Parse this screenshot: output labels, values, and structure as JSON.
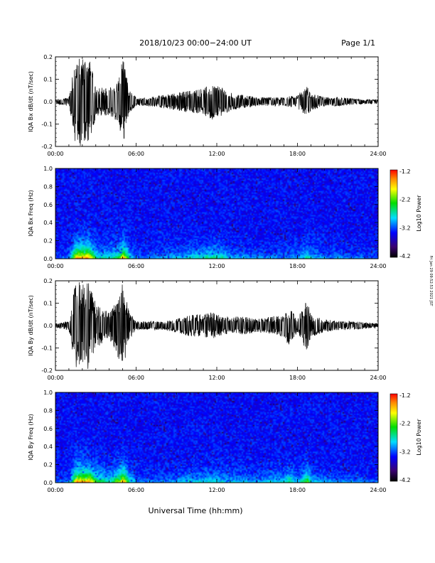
{
  "header": {
    "date_range": "2018/10/23  00:00−24:00 UT",
    "page": "Page 1/1"
  },
  "footer": {
    "xlabel": "Universal Time (hh:mm)",
    "side_note": "Fri Jan 29 09:52:53 2021 JST"
  },
  "time_ticks": [
    "00:00",
    "06:00",
    "12:00",
    "18:00",
    "24:00"
  ],
  "chart_data": [
    {
      "type": "line",
      "ylabel": "IQA Bx dB/dt (nT/sec)",
      "xlim": [
        0,
        24
      ],
      "ylim": [
        -0.2,
        0.2
      ],
      "yticks": [
        "0.2",
        "0.1",
        "0.0",
        "-0.1",
        "-0.2"
      ],
      "x": [
        0,
        1,
        1.5,
        2,
        2.5,
        3,
        4,
        4.7,
        5,
        5.5,
        6,
        7,
        8,
        9,
        10,
        11,
        11.7,
        12,
        12.5,
        13,
        14,
        15,
        16,
        17,
        18,
        18.7,
        19,
        20,
        21,
        22,
        23,
        24
      ],
      "y_envelope": [
        0.01,
        0.02,
        0.2,
        0.2,
        0.2,
        0.07,
        0.06,
        0.1,
        0.2,
        0.05,
        0.02,
        0.02,
        0.03,
        0.04,
        0.05,
        0.06,
        0.08,
        0.07,
        0.06,
        0.04,
        0.03,
        0.02,
        0.02,
        0.02,
        0.03,
        0.07,
        0.04,
        0.02,
        0.02,
        0.015,
        0.01,
        0.01
      ]
    },
    {
      "type": "heatmap",
      "ylabel": "IQA Bx Freq (Hz)",
      "colorbar_label": "Log10 Power",
      "colorbar_ticks": [
        "-1.2",
        "-2.2",
        "-3.2",
        "-4.2"
      ],
      "xlim": [
        0,
        24
      ],
      "ylim": [
        0.0,
        1.0
      ],
      "yticks": [
        "1.0",
        "0.8",
        "0.6",
        "0.4",
        "0.2",
        "0.0"
      ],
      "clim": [
        -4.2,
        -1.2
      ]
    },
    {
      "type": "line",
      "ylabel": "IQA By dB/dt (nT/sec)",
      "xlim": [
        0,
        24
      ],
      "ylim": [
        -0.2,
        0.2
      ],
      "yticks": [
        "0.2",
        "0.1",
        "0.0",
        "-0.1",
        "-0.2"
      ],
      "x": [
        0,
        1,
        1.5,
        2,
        2.5,
        3,
        4,
        4.7,
        5,
        5.5,
        6,
        7,
        8,
        9,
        10,
        11,
        11.7,
        12,
        12.5,
        13,
        14,
        15,
        16,
        17,
        17.3,
        18,
        18.7,
        19,
        20,
        21,
        22,
        23,
        24
      ],
      "y_envelope": [
        0.01,
        0.02,
        0.2,
        0.2,
        0.2,
        0.1,
        0.06,
        0.15,
        0.2,
        0.06,
        0.02,
        0.02,
        0.02,
        0.03,
        0.05,
        0.05,
        0.06,
        0.05,
        0.04,
        0.04,
        0.04,
        0.03,
        0.04,
        0.05,
        0.09,
        0.03,
        0.12,
        0.05,
        0.03,
        0.02,
        0.02,
        0.015,
        0.01
      ]
    },
    {
      "type": "heatmap",
      "ylabel": "IQA By Freq (Hz)",
      "colorbar_label": "Log10 Power",
      "colorbar_ticks": [
        "-1.2",
        "-2.2",
        "-3.2",
        "-4.2"
      ],
      "xlim": [
        0,
        24
      ],
      "ylim": [
        0.0,
        1.0
      ],
      "yticks": [
        "1.0",
        "0.8",
        "0.6",
        "0.4",
        "0.2",
        "0.0"
      ],
      "clim": [
        -4.2,
        -1.2
      ]
    }
  ]
}
